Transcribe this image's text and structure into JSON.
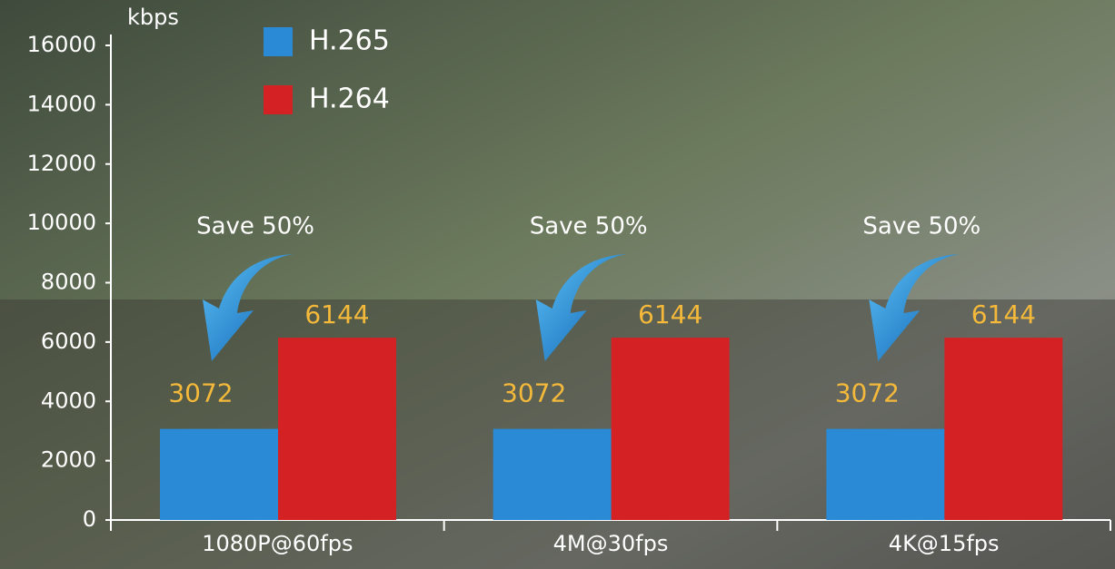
{
  "chart_data": {
    "type": "bar",
    "y_axis_label": "kbps",
    "categories": [
      "1080P@60fps",
      "4M@30fps",
      "4K@15fps"
    ],
    "series": [
      {
        "name": "H.265",
        "color": "#2a8ad6",
        "values": [
          3072,
          3072,
          3072
        ]
      },
      {
        "name": "H.264",
        "color": "#d42224",
        "values": [
          6144,
          6144,
          6144
        ]
      }
    ],
    "annotations": [
      "Save 50%",
      "Save 50%",
      "Save 50%"
    ],
    "value_label_color": "#f4b93a",
    "ylim": [
      0,
      16000
    ],
    "yticks": [
      0,
      2000,
      4000,
      6000,
      8000,
      10000,
      12000,
      14000,
      16000
    ]
  }
}
